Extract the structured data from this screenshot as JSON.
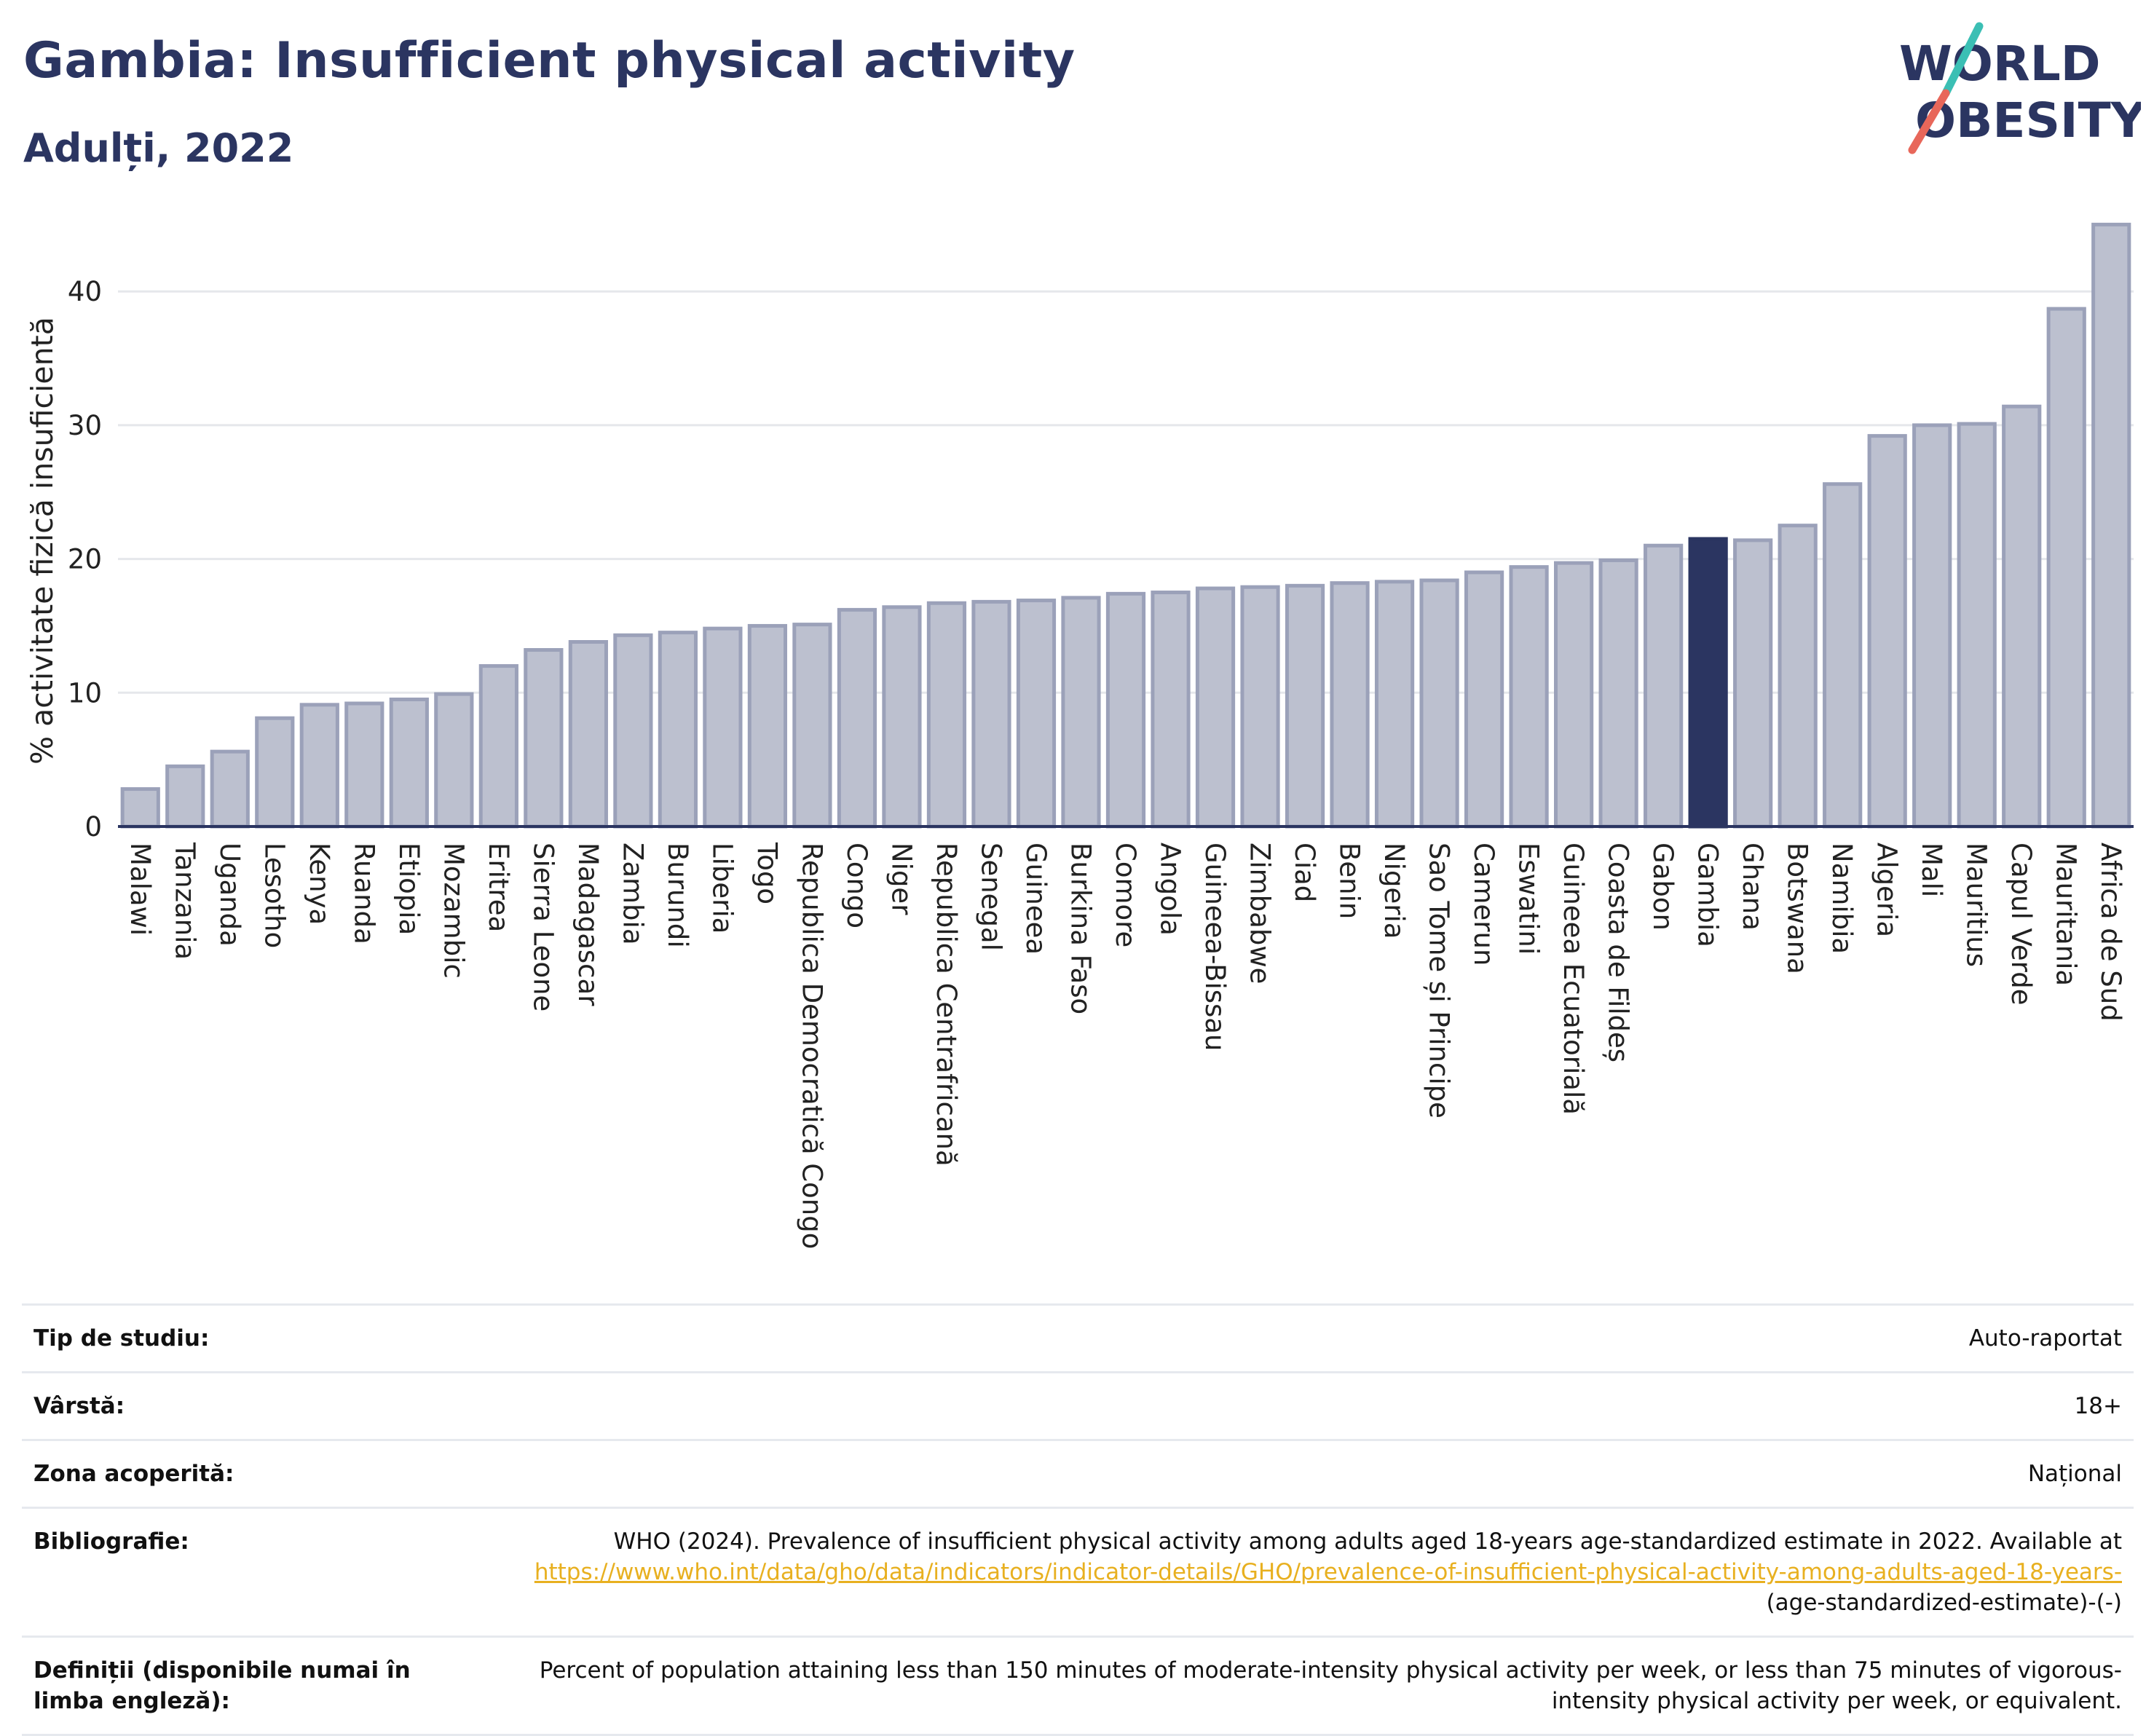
{
  "header": {
    "title": "Gambia: Insufficient physical activity",
    "subtitle": "Adulți, 2022"
  },
  "logo": {
    "line1": "WORLD",
    "line2": "OBESITY"
  },
  "colors": {
    "bar": "#bcc0cf",
    "bar_stroke": "#9ba1b9",
    "highlight": "#2b3561",
    "grid": "#e5e7eb",
    "axis": "#2b3561",
    "link": "#e8b020"
  },
  "chart_data": {
    "type": "bar",
    "ylabel": "% activitate fizică insuficientă",
    "ylim": [
      0,
      46
    ],
    "yticks": [
      0,
      10,
      20,
      30,
      40
    ],
    "grid": true,
    "highlight": "Gambia",
    "categories": [
      "Malawi",
      "Tanzania",
      "Uganda",
      "Lesotho",
      "Kenya",
      "Ruanda",
      "Etiopia",
      "Mozambic",
      "Eritrea",
      "Sierra Leone",
      "Madagascar",
      "Zambia",
      "Burundi",
      "Liberia",
      "Togo",
      "Republica Democratică Congo",
      "Congo",
      "Niger",
      "Republica Centrafricană",
      "Senegal",
      "Guineea",
      "Burkina Faso",
      "Comore",
      "Angola",
      "Guineea-Bissau",
      "Zimbabwe",
      "Ciad",
      "Benin",
      "Nigeria",
      "Sao Tome și Principe",
      "Camerun",
      "Eswatini",
      "Guineea Ecuatorială",
      "Coasta de Fildeș",
      "Gabon",
      "Gambia",
      "Ghana",
      "Botswana",
      "Namibia",
      "Algeria",
      "Mali",
      "Mauritius",
      "Capul Verde",
      "Mauritania",
      "Africa de Sud"
    ],
    "values": [
      2.8,
      4.5,
      5.6,
      8.1,
      9.1,
      9.2,
      9.5,
      9.9,
      12.0,
      13.2,
      13.8,
      14.3,
      14.5,
      14.8,
      15.0,
      15.1,
      16.2,
      16.4,
      16.7,
      16.8,
      16.9,
      17.1,
      17.4,
      17.5,
      17.8,
      17.9,
      18.0,
      18.2,
      18.3,
      18.4,
      19.0,
      19.4,
      19.7,
      19.9,
      21.0,
      21.5,
      21.4,
      22.5,
      25.6,
      29.2,
      30.0,
      30.1,
      31.4,
      38.7,
      45.0
    ]
  },
  "meta": [
    {
      "label": "Tip de studiu:",
      "value": "Auto-raportat"
    },
    {
      "label": "Vârstă:",
      "value": "18+"
    },
    {
      "label": "Zona acoperită:",
      "value": "Național"
    },
    {
      "label": "Bibliografie:",
      "value": "WHO (2024). Prevalence of insufficient physical activity among adults aged 18-years age-standardized estimate in 2022. Available at",
      "link": "https://www.who.int/data/gho/data/indicators/indicator-details/GHO/prevalence-of-insufficient-physical-activity-among-adults-aged-18-years-",
      "value_tail": "(age-standardized-estimate)-(-)"
    },
    {
      "label": "Definiții (disponibile numai în limba engleză):",
      "value": "Percent of population attaining less than 150 minutes of moderate-intensity physical activity per week, or less than 75 minutes of vigorous-intensity physical activity per week, or equivalent."
    }
  ]
}
